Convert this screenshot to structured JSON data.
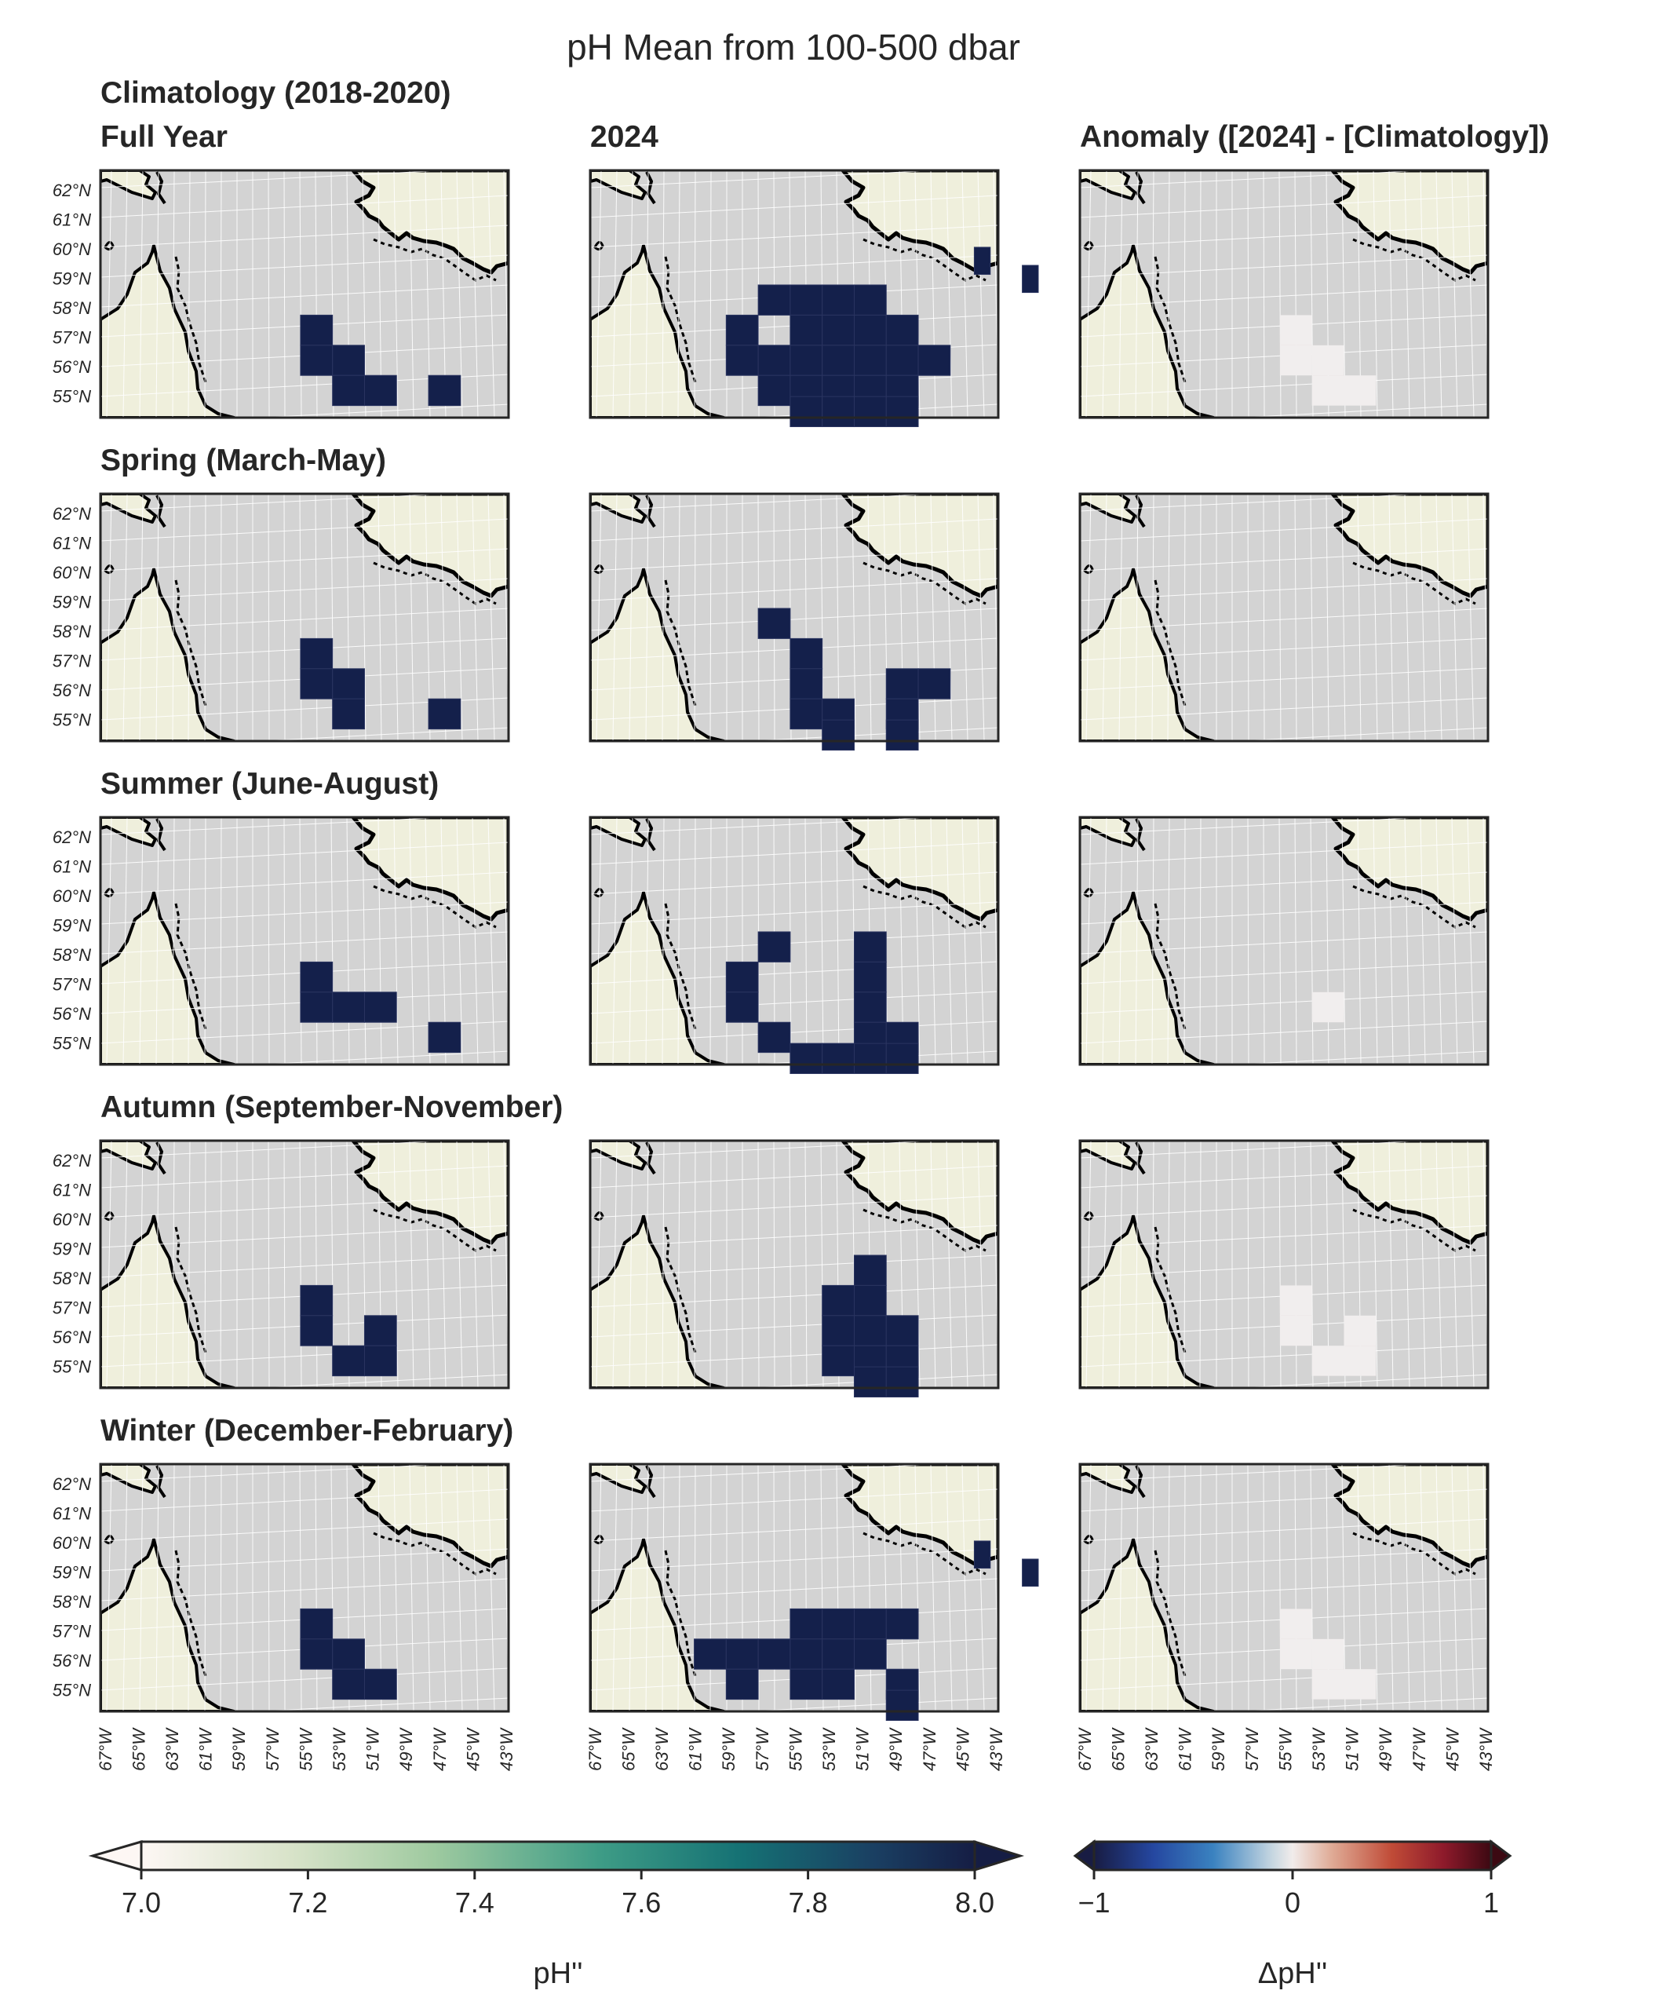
{
  "title": "pH Mean from 100-500 dbar",
  "columns": [
    {
      "id": "clim",
      "title_line1": "Climatology (2018-2020)",
      "title_line2": ""
    },
    {
      "id": "y2024",
      "title": "2024"
    },
    {
      "id": "anom",
      "title": "Anomaly ([2024] - [Climatology])"
    }
  ],
  "rows": [
    {
      "id": "full",
      "title": "Full Year"
    },
    {
      "id": "spring",
      "title": "Spring (March-May)"
    },
    {
      "id": "summer",
      "title": "Summer (June-August)"
    },
    {
      "id": "autumn",
      "title": "Autumn (September-November)"
    },
    {
      "id": "winter",
      "title": "Winter (December-February)"
    }
  ],
  "lat_ticks": [
    "62°N",
    "61°N",
    "60°N",
    "59°N",
    "58°N",
    "57°N",
    "56°N",
    "55°N"
  ],
  "lon_ticks": [
    "67°W",
    "65°W",
    "63°W",
    "61°W",
    "59°W",
    "57°W",
    "55°W",
    "53°W",
    "51°W",
    "49°W",
    "47°W",
    "45°W",
    "43°W"
  ],
  "colors": {
    "land": "#efefdc",
    "ocean": "#d3d3d3",
    "coast": "#000000",
    "grid": "#ffffff",
    "cell_ph": "#14204b",
    "cell_anom": "#f1eeee"
  },
  "colorbars": {
    "ph": {
      "label": "pH''",
      "ticks": [
        "7.0",
        "7.2",
        "7.4",
        "7.6",
        "7.8",
        "8.0"
      ],
      "min": 7.0,
      "max": 8.0,
      "colormap": "tempo"
    },
    "anom": {
      "label": "ΔpH''",
      "ticks": [
        "−1",
        "0",
        "1"
      ],
      "min": -1,
      "max": 1,
      "colormap": "balance"
    }
  },
  "chart_data": {
    "type": "heatmap",
    "cell_units": "approximate grid cells (lon °W, lat °N), 2° lon × 1° lat; values shown saturated at colorbar end",
    "panels": {
      "full": {
        "clim": [
          [
            -54,
            57.5
          ],
          [
            -54,
            56.5
          ],
          [
            -52,
            56.5
          ],
          [
            -52,
            55.5
          ],
          [
            -50,
            55.5
          ],
          [
            -46,
            55.5
          ]
        ],
        "y2024": [
          [
            -56,
            58.5
          ],
          [
            -54,
            58.5
          ],
          [
            -52,
            58.5
          ],
          [
            -50,
            58.5
          ],
          [
            -58,
            57.5
          ],
          [
            -54,
            57.5
          ],
          [
            -52,
            57.5
          ],
          [
            -50,
            57.5
          ],
          [
            -48,
            57.5
          ],
          [
            -58,
            56.5
          ],
          [
            -56,
            56.5
          ],
          [
            -54,
            56.5
          ],
          [
            -52,
            56.5
          ],
          [
            -50,
            56.5
          ],
          [
            -48,
            56.5
          ],
          [
            -46,
            56.5
          ],
          [
            -56,
            55.5
          ],
          [
            -54,
            55.5
          ],
          [
            -52,
            55.5
          ],
          [
            -50,
            55.5
          ],
          [
            -48,
            55.5
          ],
          [
            -54,
            54.8
          ],
          [
            -52,
            54.8
          ],
          [
            -50,
            54.8
          ],
          [
            -48,
            54.8
          ],
          [
            -43,
            59.8
          ],
          [
            -40,
            59.2
          ]
        ],
        "anom": [
          [
            -54,
            57.5
          ],
          [
            -54,
            56.5
          ],
          [
            -52,
            56.5
          ],
          [
            -52,
            55.5
          ],
          [
            -50,
            55.5
          ]
        ]
      },
      "spring": {
        "clim": [
          [
            -54,
            57.5
          ],
          [
            -54,
            56.5
          ],
          [
            -52,
            56.5
          ],
          [
            -52,
            55.5
          ],
          [
            -46,
            55.5
          ]
        ],
        "y2024": [
          [
            -56,
            58.5
          ],
          [
            -54,
            57.5
          ],
          [
            -54,
            56.5
          ],
          [
            -54,
            55.5
          ],
          [
            -52,
            55.5
          ],
          [
            -52,
            54.8
          ],
          [
            -48,
            56.5
          ],
          [
            -46,
            56.5
          ],
          [
            -48,
            55.5
          ],
          [
            -48,
            54.8
          ]
        ],
        "anom": []
      },
      "summer": {
        "clim": [
          [
            -54,
            57.5
          ],
          [
            -54,
            56.5
          ],
          [
            -52,
            56.5
          ],
          [
            -50,
            56.5
          ],
          [
            -46,
            55.5
          ]
        ],
        "y2024": [
          [
            -56,
            58.5
          ],
          [
            -58,
            57.5
          ],
          [
            -58,
            56.5
          ],
          [
            -56,
            55.5
          ],
          [
            -54,
            54.8
          ],
          [
            -50,
            58.5
          ],
          [
            -50,
            57.5
          ],
          [
            -50,
            56.5
          ],
          [
            -50,
            55.5
          ],
          [
            -48,
            55.5
          ],
          [
            -52,
            54.8
          ],
          [
            -50,
            54.8
          ],
          [
            -48,
            54.8
          ]
        ],
        "anom": [
          [
            -52,
            56.5
          ]
        ]
      },
      "autumn": {
        "clim": [
          [
            -54,
            57.5
          ],
          [
            -54,
            56.5
          ],
          [
            -50,
            56.5
          ],
          [
            -52,
            55.5
          ],
          [
            -50,
            55.5
          ]
        ],
        "y2024": [
          [
            -50,
            58.5
          ],
          [
            -52,
            57.5
          ],
          [
            -50,
            57.5
          ],
          [
            -52,
            56.5
          ],
          [
            -50,
            56.5
          ],
          [
            -48,
            56.5
          ],
          [
            -52,
            55.5
          ],
          [
            -50,
            55.5
          ],
          [
            -48,
            55.5
          ],
          [
            -50,
            54.8
          ],
          [
            -48,
            54.8
          ]
        ],
        "anom": [
          [
            -54,
            57.5
          ],
          [
            -54,
            56.5
          ],
          [
            -50,
            56.5
          ],
          [
            -52,
            55.5
          ],
          [
            -50,
            55.5
          ]
        ]
      },
      "winter": {
        "clim": [
          [
            -54,
            57.5
          ],
          [
            -54,
            56.5
          ],
          [
            -52,
            56.5
          ],
          [
            -52,
            55.5
          ],
          [
            -50,
            55.5
          ]
        ],
        "y2024": [
          [
            -54,
            57.5
          ],
          [
            -52,
            57.5
          ],
          [
            -50,
            57.5
          ],
          [
            -48,
            57.5
          ],
          [
            -60,
            56.5
          ],
          [
            -58,
            56.5
          ],
          [
            -56,
            56.5
          ],
          [
            -54,
            56.5
          ],
          [
            -52,
            56.5
          ],
          [
            -50,
            56.5
          ],
          [
            -58,
            55.5
          ],
          [
            -54,
            55.5
          ],
          [
            -52,
            55.5
          ],
          [
            -48,
            55.5
          ],
          [
            -48,
            54.8
          ],
          [
            -43,
            59.8
          ],
          [
            -40,
            59.2
          ]
        ],
        "anom": [
          [
            -54,
            57.5
          ],
          [
            -54,
            56.5
          ],
          [
            -52,
            56.5
          ],
          [
            -52,
            55.5
          ],
          [
            -50,
            55.5
          ]
        ]
      }
    }
  }
}
